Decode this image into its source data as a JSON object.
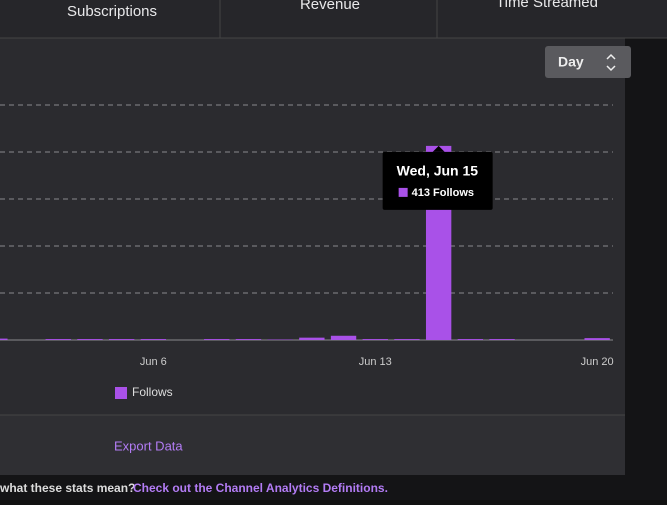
{
  "tabs": [
    "Subscriptions",
    "Revenue",
    "Time Streamed"
  ],
  "dropdown": "Day",
  "chart_data": {
    "type": "bar",
    "categories": [
      null,
      null,
      null,
      null,
      null,
      "Jun 6",
      null,
      null,
      null,
      null,
      null,
      null,
      "Jun 13",
      null,
      null,
      null,
      null,
      null,
      null,
      "Jun 20"
    ],
    "series": [
      {
        "name": "Follows",
        "color": "#a951e8",
        "values": [
          3,
          0,
          2,
          2,
          2,
          2,
          0,
          2,
          2,
          1,
          5,
          9,
          2,
          2,
          413,
          2,
          2,
          0,
          0,
          4
        ]
      }
    ],
    "ylim": [
      0,
      500
    ],
    "yticks": [
      0,
      100,
      200,
      300,
      400,
      500
    ],
    "grid": true,
    "tooltip": {
      "title": "Wed, Jun 15",
      "text": "413 Follows"
    }
  },
  "export": "Export Data",
  "footer": {
    "text": "what these stats mean?",
    "link": "Check out the Channel Analytics Definitions."
  }
}
